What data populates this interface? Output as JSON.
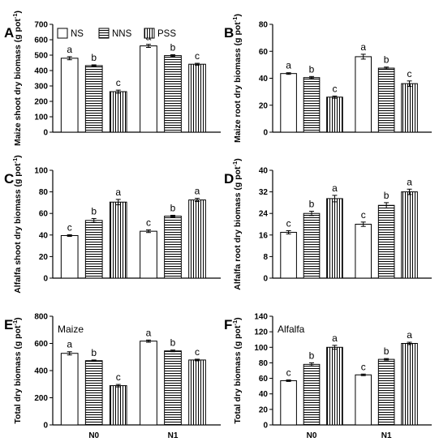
{
  "chart_data": [
    {
      "type": "bar",
      "panel": "A",
      "ylabel": "Maize shoot dry biomass (g pot",
      "ylabel_sup": "-1",
      "ylabel_tail": ")",
      "ylim": [
        0,
        700
      ],
      "yticks": [
        "0",
        "100",
        "200",
        "300",
        "400",
        "500",
        "600",
        "700"
      ],
      "categories": [
        "",
        ""
      ],
      "series": [
        {
          "name": "NS",
          "values": [
            480,
            560
          ],
          "errors": [
            10,
            10
          ],
          "letters": [
            "a",
            "a"
          ]
        },
        {
          "name": "NNS",
          "values": [
            432,
            497
          ],
          "errors": [
            5,
            6
          ],
          "letters": [
            "b",
            "b"
          ]
        },
        {
          "name": "PSS",
          "values": [
            263,
            441
          ],
          "errors": [
            10,
            6
          ],
          "letters": [
            "c",
            "c"
          ]
        }
      ],
      "legend": {
        "placement": "top-left"
      },
      "inset_label": ""
    },
    {
      "type": "bar",
      "panel": "B",
      "ylabel": "Maize root dry biomass (g pot",
      "ylabel_sup": "-1",
      "ylabel_tail": ")",
      "ylim": [
        0,
        80
      ],
      "yticks": [
        "0",
        "20",
        "40",
        "60",
        "80"
      ],
      "categories": [
        "",
        ""
      ],
      "series": [
        {
          "name": "NS",
          "values": [
            43.5,
            56
          ],
          "errors": [
            0.6,
            1.8
          ],
          "letters": [
            "a",
            "a"
          ]
        },
        {
          "name": "NNS",
          "values": [
            40.5,
            47.5
          ],
          "errors": [
            0.8,
            0.8
          ],
          "letters": [
            "b",
            "b"
          ]
        },
        {
          "name": "PSS",
          "values": [
            26,
            36
          ],
          "errors": [
            0.8,
            2
          ],
          "letters": [
            "c",
            "c"
          ]
        }
      ],
      "inset_label": ""
    },
    {
      "type": "bar",
      "panel": "C",
      "ylabel": "Alfalfa shoot dry biomass (g pot",
      "ylabel_sup": "-1",
      "ylabel_tail": ")",
      "ylim": [
        0,
        100
      ],
      "yticks": [
        "0",
        "20",
        "40",
        "60",
        "80",
        "100"
      ],
      "categories": [
        "",
        ""
      ],
      "series": [
        {
          "name": "NS",
          "values": [
            39.5,
            43.5
          ],
          "errors": [
            0.8,
            1.2
          ],
          "letters": [
            "c",
            "c"
          ]
        },
        {
          "name": "NNS",
          "values": [
            53.5,
            57.5
          ],
          "errors": [
            1.8,
            0.8
          ],
          "letters": [
            "b",
            "b"
          ]
        },
        {
          "name": "PSS",
          "values": [
            70.5,
            72.5
          ],
          "errors": [
            2.5,
            1.5
          ],
          "letters": [
            "a",
            "a"
          ]
        }
      ],
      "inset_label": ""
    },
    {
      "type": "bar",
      "panel": "D",
      "ylabel": "Alfalfa root dry biomass (g pot",
      "ylabel_sup": "-1",
      "ylabel_tail": ")",
      "ylim": [
        0,
        40
      ],
      "yticks": [
        "0",
        "8",
        "16",
        "24",
        "32",
        "40"
      ],
      "categories": [
        "",
        ""
      ],
      "series": [
        {
          "name": "NS",
          "values": [
            17,
            20
          ],
          "errors": [
            0.6,
            0.8
          ],
          "letters": [
            "c",
            "c"
          ]
        },
        {
          "name": "NNS",
          "values": [
            24,
            27
          ],
          "errors": [
            0.8,
            1
          ],
          "letters": [
            "b",
            "b"
          ]
        },
        {
          "name": "PSS",
          "values": [
            29.5,
            32
          ],
          "errors": [
            1.2,
            1
          ],
          "letters": [
            "a",
            "a"
          ]
        }
      ],
      "inset_label": ""
    },
    {
      "type": "bar",
      "panel": "E",
      "ylabel": "Total dry biomass (g pot",
      "ylabel_sup": "-1",
      "ylabel_tail": ")",
      "ylim": [
        0,
        800
      ],
      "yticks": [
        "0",
        "200",
        "400",
        "600",
        "800"
      ],
      "categories": [
        "N0",
        "N1"
      ],
      "series": [
        {
          "name": "NS",
          "values": [
            527,
            617
          ],
          "errors": [
            12,
            8
          ],
          "letters": [
            "a",
            "a"
          ]
        },
        {
          "name": "NNS",
          "values": [
            473,
            545
          ],
          "errors": [
            5,
            6
          ],
          "letters": [
            "b",
            "b"
          ]
        },
        {
          "name": "PSS",
          "values": [
            289,
            478
          ],
          "errors": [
            9,
            6
          ],
          "letters": [
            "c",
            "c"
          ]
        }
      ],
      "inset_label": "Maize"
    },
    {
      "type": "bar",
      "panel": "F",
      "ylabel": "Total dry biomass (g pot",
      "ylabel_sup": "-1",
      "ylabel_tail": ")",
      "ylim": [
        0,
        140
      ],
      "yticks": [
        "0",
        "20",
        "40",
        "60",
        "80",
        "100",
        "120",
        "140"
      ],
      "categories": [
        "N0",
        "N1"
      ],
      "series": [
        {
          "name": "NS",
          "values": [
            57,
            64.5
          ],
          "errors": [
            1,
            1
          ],
          "letters": [
            "c",
            "c"
          ]
        },
        {
          "name": "NNS",
          "values": [
            78,
            84.5
          ],
          "errors": [
            2,
            1
          ],
          "letters": [
            "b",
            "b"
          ]
        },
        {
          "name": "PSS",
          "values": [
            100,
            105
          ],
          "errors": [
            2.5,
            1.5
          ],
          "letters": [
            "a",
            "a"
          ]
        }
      ],
      "inset_label": "Alfalfa"
    }
  ],
  "colors": {
    "bar_fill": "#ffffff",
    "stroke": "#000000"
  }
}
